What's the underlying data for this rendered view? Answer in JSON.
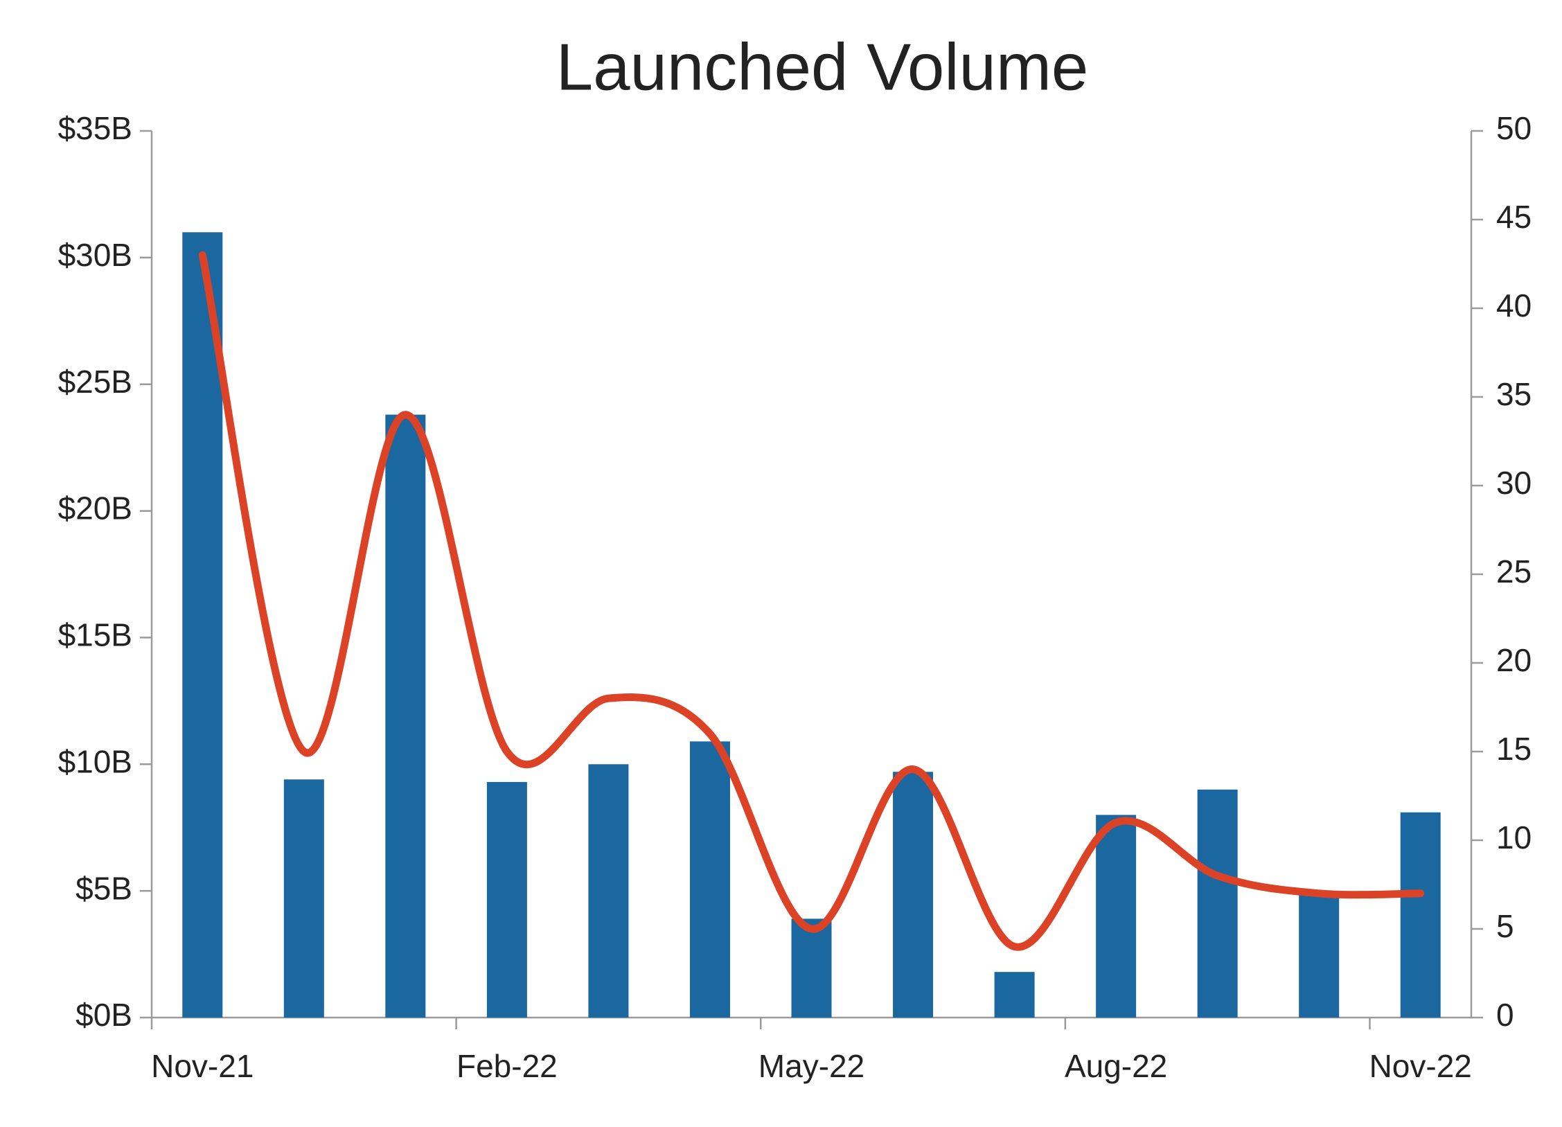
{
  "chart_data": {
    "type": "bar-line",
    "title": "Launched Volume",
    "categories": [
      "Nov-21",
      null,
      null,
      "Feb-22",
      null,
      null,
      "May-22",
      null,
      null,
      "Aug-22",
      null,
      null,
      "Nov-22"
    ],
    "series": [
      {
        "type": "bar",
        "color": "#1b67a0",
        "values": [
          31,
          9.4,
          23.8,
          9.3,
          10,
          10.9,
          3.9,
          9.7,
          1.8,
          8,
          9,
          5,
          8.1
        ]
      },
      {
        "type": "line",
        "axis": "y2",
        "smooth": true,
        "color": "#dc4326",
        "values": [
          43,
          15,
          34,
          15,
          18,
          16,
          5,
          14,
          4,
          11,
          8,
          7,
          7
        ]
      }
    ],
    "ylim": [
      0,
      35
    ],
    "yticks": [
      {
        "value": 0,
        "label": "$0B"
      },
      {
        "value": 5,
        "label": "$5B"
      },
      {
        "value": 10,
        "label": "$10B"
      },
      {
        "value": 15,
        "label": "$15B"
      },
      {
        "value": 20,
        "label": "$20B"
      },
      {
        "value": 25,
        "label": "$25B"
      },
      {
        "value": 30,
        "label": "$30B"
      },
      {
        "value": 35,
        "label": "$35B"
      }
    ],
    "y2lim": [
      0,
      50
    ],
    "y2ticks": [
      0,
      5,
      10,
      15,
      20,
      25,
      30,
      35,
      40,
      45,
      50
    ],
    "grid": false
  }
}
